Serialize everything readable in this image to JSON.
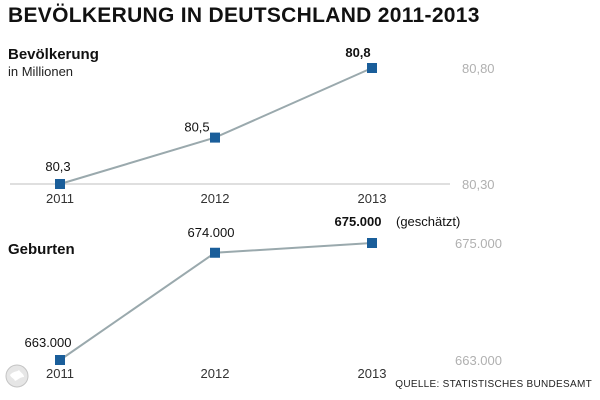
{
  "title": "BEVÖLKERUNG IN DEUTSCHLAND 2011-2013",
  "source": "QUELLE: STATISTISCHES BUNDESAMT",
  "colors": {
    "marker": "#1a5e9a",
    "line": "#9aa9ad",
    "axis": "#cccccc",
    "ref_label": "#b0b0b0"
  },
  "chart_data": [
    {
      "type": "line",
      "title": "Bevölkerung",
      "subtitle": "in Millionen",
      "x": [
        "2011",
        "2012",
        "2013"
      ],
      "values": [
        80.3,
        80.5,
        80.8
      ],
      "point_labels": [
        "80,3",
        "80,5",
        "80,8"
      ],
      "highlighted_point": 2,
      "reference_labels": [
        {
          "value": 80.8,
          "label": "80,80"
        },
        {
          "value": 80.3,
          "label": "80,30"
        }
      ],
      "ylim": [
        80.3,
        80.8
      ]
    },
    {
      "type": "line",
      "title": "Geburten",
      "x": [
        "2011",
        "2012",
        "2013"
      ],
      "values": [
        663000,
        674000,
        675000
      ],
      "point_labels": [
        "663.000",
        "674.000",
        "675.000"
      ],
      "highlighted_point": 2,
      "annotation": "(geschätzt)",
      "reference_labels": [
        {
          "value": 675000,
          "label": "675.000"
        },
        {
          "value": 663000,
          "label": "663.000"
        }
      ],
      "ylim": [
        663000,
        675000
      ]
    }
  ]
}
